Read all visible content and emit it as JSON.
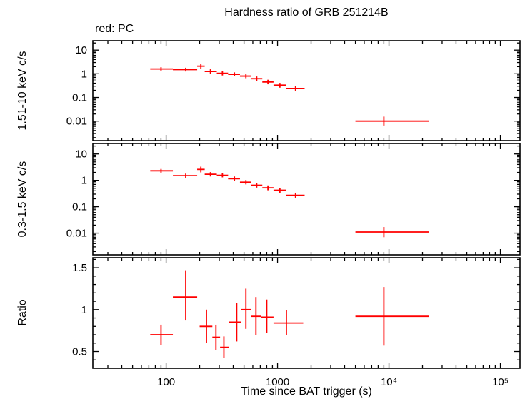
{
  "figure": {
    "title": "Hardness ratio of GRB 251214B",
    "annotation": "red: PC",
    "xlabel": "Time since BAT trigger (s)",
    "series_color": "#ff0000",
    "xticks": {
      "values": [
        100,
        1000,
        10000,
        100000
      ],
      "labels": [
        "100",
        "1000",
        "10⁴",
        "10⁵"
      ]
    }
  },
  "chart_data": [
    {
      "type": "scatter",
      "name": "hard-band-lightcurve",
      "ylabel": "1.51-10 keV c/s",
      "xscale": "log",
      "yscale": "log",
      "xlim": [
        22,
        150000
      ],
      "ylim": [
        0.0015,
        25
      ],
      "yticks": [
        0.01,
        0.1,
        1,
        10
      ],
      "points": [
        {
          "x": 90,
          "xlo": 72,
          "xhi": 115,
          "y": 1.6,
          "ylo": 1.35,
          "yhi": 1.9
        },
        {
          "x": 150,
          "xlo": 115,
          "xhi": 190,
          "y": 1.5,
          "ylo": 1.25,
          "yhi": 1.8
        },
        {
          "x": 205,
          "xlo": 190,
          "xhi": 222,
          "y": 2.1,
          "ylo": 1.6,
          "yhi": 2.7
        },
        {
          "x": 250,
          "xlo": 222,
          "xhi": 285,
          "y": 1.25,
          "ylo": 1.0,
          "yhi": 1.55
        },
        {
          "x": 320,
          "xlo": 285,
          "xhi": 360,
          "y": 1.05,
          "ylo": 0.85,
          "yhi": 1.3
        },
        {
          "x": 410,
          "xlo": 360,
          "xhi": 460,
          "y": 0.95,
          "ylo": 0.78,
          "yhi": 1.15
        },
        {
          "x": 520,
          "xlo": 460,
          "xhi": 580,
          "y": 0.8,
          "ylo": 0.65,
          "yhi": 0.98
        },
        {
          "x": 650,
          "xlo": 580,
          "xhi": 730,
          "y": 0.62,
          "ylo": 0.5,
          "yhi": 0.77
        },
        {
          "x": 820,
          "xlo": 730,
          "xhi": 920,
          "y": 0.45,
          "ylo": 0.36,
          "yhi": 0.56
        },
        {
          "x": 1050,
          "xlo": 920,
          "xhi": 1200,
          "y": 0.33,
          "ylo": 0.26,
          "yhi": 0.41
        },
        {
          "x": 1450,
          "xlo": 1200,
          "xhi": 1750,
          "y": 0.24,
          "ylo": 0.19,
          "yhi": 0.3
        },
        {
          "x": 9000,
          "xlo": 5000,
          "xhi": 23000,
          "y": 0.01,
          "ylo": 0.0065,
          "yhi": 0.0155
        }
      ]
    },
    {
      "type": "scatter",
      "name": "soft-band-lightcurve",
      "ylabel": "0.3-1.5 keV c/s",
      "xscale": "log",
      "yscale": "log",
      "xlim": [
        22,
        150000
      ],
      "ylim": [
        0.0015,
        25
      ],
      "yticks": [
        0.01,
        0.1,
        1,
        10
      ],
      "points": [
        {
          "x": 90,
          "xlo": 72,
          "xhi": 115,
          "y": 2.3,
          "ylo": 1.95,
          "yhi": 2.7
        },
        {
          "x": 150,
          "xlo": 115,
          "xhi": 190,
          "y": 1.5,
          "ylo": 1.25,
          "yhi": 1.8
        },
        {
          "x": 205,
          "xlo": 190,
          "xhi": 222,
          "y": 2.6,
          "ylo": 2.0,
          "yhi": 3.3
        },
        {
          "x": 250,
          "xlo": 222,
          "xhi": 285,
          "y": 1.7,
          "ylo": 1.4,
          "yhi": 2.05
        },
        {
          "x": 320,
          "xlo": 285,
          "xhi": 360,
          "y": 1.55,
          "ylo": 1.3,
          "yhi": 1.85
        },
        {
          "x": 410,
          "xlo": 360,
          "xhi": 460,
          "y": 1.15,
          "ylo": 0.95,
          "yhi": 1.4
        },
        {
          "x": 520,
          "xlo": 460,
          "xhi": 580,
          "y": 0.85,
          "ylo": 0.7,
          "yhi": 1.03
        },
        {
          "x": 650,
          "xlo": 580,
          "xhi": 730,
          "y": 0.65,
          "ylo": 0.53,
          "yhi": 0.8
        },
        {
          "x": 820,
          "xlo": 730,
          "xhi": 920,
          "y": 0.52,
          "ylo": 0.42,
          "yhi": 0.64
        },
        {
          "x": 1050,
          "xlo": 920,
          "xhi": 1200,
          "y": 0.42,
          "ylo": 0.34,
          "yhi": 0.52
        },
        {
          "x": 1450,
          "xlo": 1200,
          "xhi": 1750,
          "y": 0.27,
          "ylo": 0.22,
          "yhi": 0.34
        },
        {
          "x": 9000,
          "xlo": 5000,
          "xhi": 23000,
          "y": 0.011,
          "ylo": 0.007,
          "yhi": 0.017
        }
      ]
    },
    {
      "type": "scatter",
      "name": "hardness-ratio",
      "ylabel": "Ratio",
      "xscale": "log",
      "yscale": "linear",
      "xlim": [
        22,
        150000
      ],
      "ylim": [
        0.3,
        1.62
      ],
      "yticks": [
        0.5,
        1,
        1.5
      ],
      "points": [
        {
          "x": 90,
          "xlo": 72,
          "xhi": 115,
          "y": 0.7,
          "ylo": 0.58,
          "yhi": 0.82
        },
        {
          "x": 150,
          "xlo": 115,
          "xhi": 190,
          "y": 1.15,
          "ylo": 0.87,
          "yhi": 1.47
        },
        {
          "x": 230,
          "xlo": 200,
          "xhi": 260,
          "y": 0.8,
          "ylo": 0.6,
          "yhi": 1.0
        },
        {
          "x": 280,
          "xlo": 260,
          "xhi": 305,
          "y": 0.67,
          "ylo": 0.52,
          "yhi": 0.82
        },
        {
          "x": 330,
          "xlo": 305,
          "xhi": 365,
          "y": 0.55,
          "ylo": 0.42,
          "yhi": 0.68
        },
        {
          "x": 430,
          "xlo": 365,
          "xhi": 470,
          "y": 0.85,
          "ylo": 0.62,
          "yhi": 1.08
        },
        {
          "x": 520,
          "xlo": 470,
          "xhi": 580,
          "y": 1.0,
          "ylo": 0.77,
          "yhi": 1.25
        },
        {
          "x": 640,
          "xlo": 580,
          "xhi": 710,
          "y": 0.92,
          "ylo": 0.7,
          "yhi": 1.15
        },
        {
          "x": 800,
          "xlo": 710,
          "xhi": 920,
          "y": 0.91,
          "ylo": 0.72,
          "yhi": 1.12
        },
        {
          "x": 1200,
          "xlo": 920,
          "xhi": 1700,
          "y": 0.84,
          "ylo": 0.7,
          "yhi": 0.99
        },
        {
          "x": 9000,
          "xlo": 5000,
          "xhi": 23000,
          "y": 0.92,
          "ylo": 0.57,
          "yhi": 1.27
        }
      ]
    }
  ]
}
